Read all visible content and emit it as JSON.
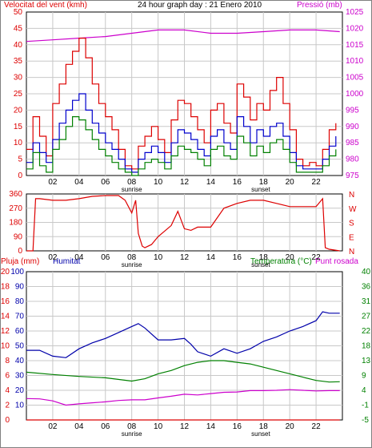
{
  "chart_data": [
    {
      "type": "line",
      "title": "24 hour graph day : 21 Enero 2010",
      "left_axis_label": "Velocitat del vent (kmh)",
      "right_axis_label": "Pressió (mb)",
      "left_ylim": [
        0,
        50
      ],
      "left_ticks": [
        "0",
        "5",
        "10",
        "15",
        "20",
        "25",
        "30",
        "35",
        "40",
        "45",
        "50"
      ],
      "right_ylim": [
        975,
        1025
      ],
      "right_ticks": [
        "975",
        "980",
        "985",
        "990",
        "995",
        "1000",
        "1005",
        "1010",
        "1015",
        "1020",
        "1025"
      ],
      "x_ticks": [
        "02",
        "04",
        "06",
        "08",
        "10",
        "12",
        "14",
        "16",
        "18",
        "20",
        "22"
      ],
      "x_markers": [
        {
          "label": "sunrise",
          "hour": 8.0
        },
        {
          "label": "sunset",
          "hour": 17.8
        }
      ],
      "xlim": [
        0,
        24
      ],
      "grid": true,
      "colors": {
        "gust": "#dd0000",
        "average": "#0000cc",
        "speed": "#008000",
        "pressure": "#cc00cc"
      },
      "series": [
        {
          "axis": "right",
          "color": "pressure",
          "x": [
            0,
            2,
            4,
            6,
            8,
            10,
            12,
            14,
            16,
            18,
            20,
            22,
            23.8
          ],
          "y": [
            1016,
            1016.5,
            1017,
            1017.5,
            1018.5,
            1019.5,
            1019.5,
            1018.5,
            1018.5,
            1019,
            1019.5,
            1019.5,
            1019
          ]
        },
        {
          "axis": "left",
          "color": "gust",
          "x": [
            0,
            0.5,
            1,
            1.5,
            2,
            2.5,
            3,
            3.5,
            4,
            4.5,
            5,
            5.5,
            6,
            6.5,
            7,
            7.5,
            8,
            8.5,
            9,
            9.5,
            10,
            10.5,
            11,
            11.5,
            12,
            12.5,
            13,
            13.5,
            14,
            14.5,
            15,
            15.5,
            16,
            16.5,
            17,
            17.5,
            18,
            18.5,
            19,
            19.5,
            20,
            20.5,
            21,
            21.5,
            22,
            22.5,
            23,
            23.5
          ],
          "y": [
            8,
            18,
            12,
            6,
            22,
            28,
            34,
            38,
            42,
            36,
            28,
            22,
            18,
            14,
            8,
            3,
            2,
            9,
            12,
            15,
            11,
            7,
            17,
            23,
            22,
            18,
            14,
            10,
            20,
            22,
            16,
            13,
            28,
            24,
            17,
            22,
            20,
            26,
            30,
            22,
            14,
            5,
            3,
            4,
            3,
            8,
            14,
            16
          ]
        },
        {
          "axis": "left",
          "color": "average",
          "x": [
            0,
            0.5,
            1,
            1.5,
            2,
            2.5,
            3,
            3.5,
            4,
            4.5,
            5,
            5.5,
            6,
            6.5,
            7,
            7.5,
            8,
            8.5,
            9,
            9.5,
            10,
            10.5,
            11,
            11.5,
            12,
            12.5,
            13,
            13.5,
            14,
            14.5,
            15,
            15.5,
            16,
            16.5,
            17,
            17.5,
            18,
            18.5,
            19,
            19.5,
            20,
            20.5,
            21,
            21.5,
            22,
            22.5,
            23,
            23.5
          ],
          "y": [
            4,
            10,
            7,
            4,
            11,
            16,
            20,
            23,
            25,
            20,
            16,
            13,
            10,
            8,
            5,
            2,
            1,
            5,
            7,
            9,
            7,
            4,
            10,
            14,
            13,
            11,
            8,
            6,
            12,
            14,
            10,
            8,
            18,
            15,
            10,
            14,
            12,
            15,
            16,
            12,
            7,
            3,
            2,
            2,
            2,
            5,
            9,
            12
          ]
        },
        {
          "axis": "left",
          "color": "speed",
          "x": [
            0,
            0.5,
            1,
            1.5,
            2,
            2.5,
            3,
            3.5,
            4,
            4.5,
            5,
            5.5,
            6,
            6.5,
            7,
            7.5,
            8,
            8.5,
            9,
            9.5,
            10,
            10.5,
            11,
            11.5,
            12,
            12.5,
            13,
            13.5,
            14,
            14.5,
            15,
            15.5,
            16,
            16.5,
            17,
            17.5,
            18,
            18.5,
            19,
            19.5,
            20,
            20.5,
            21,
            21.5,
            22,
            22.5,
            23,
            23.5
          ],
          "y": [
            2,
            7,
            3,
            1,
            8,
            11,
            15,
            18,
            17,
            14,
            11,
            8,
            6,
            4,
            2,
            1,
            0,
            2,
            4,
            5,
            4,
            2,
            6,
            9,
            8,
            7,
            5,
            3,
            8,
            9,
            6,
            5,
            12,
            10,
            6,
            9,
            7,
            10,
            11,
            8,
            4,
            1,
            1,
            1,
            1,
            3,
            6,
            8
          ]
        }
      ]
    },
    {
      "type": "line",
      "left_ticks": [
        "0",
        "90",
        "180",
        "270",
        "360"
      ],
      "right_ticks": [
        "N",
        "E",
        "S",
        "W",
        "N"
      ],
      "ylim": [
        0,
        360
      ],
      "x_ticks": [
        "02",
        "04",
        "06",
        "08",
        "10",
        "12",
        "14",
        "16",
        "18",
        "20",
        "22"
      ],
      "x_markers": [
        {
          "label": "sunrise",
          "hour": 8.0
        },
        {
          "label": "sunset",
          "hour": 17.8
        }
      ],
      "xlim": [
        0,
        24
      ],
      "grid": true,
      "colors": {
        "direction": "#dd0000"
      },
      "series": [
        {
          "color": "direction",
          "x": [
            0,
            0.5,
            0.7,
            1,
            2,
            3,
            4,
            5,
            6,
            7,
            7.5,
            8,
            8.3,
            8.5,
            8.8,
            9,
            9.5,
            10,
            11,
            11.5,
            12,
            12.5,
            13,
            14,
            15,
            16,
            17,
            18,
            19,
            20,
            21,
            22,
            22.5,
            22.7,
            23,
            23.8
          ],
          "y": [
            0,
            0,
            330,
            330,
            320,
            320,
            330,
            345,
            350,
            350,
            320,
            240,
            320,
            110,
            30,
            20,
            40,
            90,
            160,
            250,
            140,
            130,
            150,
            150,
            270,
            300,
            320,
            320,
            300,
            280,
            280,
            280,
            330,
            20,
            10,
            0
          ]
        }
      ]
    },
    {
      "type": "line",
      "left_axis_label_1": "Pluja (mm)",
      "left_axis_label_2": "Humitat",
      "right_axis_label_1": "Temperatura (°C)",
      "right_axis_label_2": "Punt rosada",
      "rain_ticks": [
        "0",
        "2",
        "4",
        "6",
        "8",
        "10",
        "12",
        "14",
        "16",
        "18",
        "20"
      ],
      "humidity_ticks": [
        "10",
        "20",
        "30",
        "40",
        "50",
        "60",
        "70",
        "80",
        "90",
        "100"
      ],
      "right_ticks": [
        "-5",
        "-1",
        "4",
        "9",
        "13",
        "18",
        "22",
        "27",
        "31",
        "36",
        "40"
      ],
      "ylim_humidity": [
        0,
        100
      ],
      "ylim_temperature": [
        -5,
        40
      ],
      "x_ticks": [
        "02",
        "04",
        "06",
        "08",
        "10",
        "12",
        "14",
        "16",
        "18",
        "20",
        "22"
      ],
      "x_markers": [
        {
          "label": "sunrise",
          "hour": 8.0
        },
        {
          "label": "sunset",
          "hour": 17.8
        }
      ],
      "xlim": [
        0,
        24
      ],
      "grid": true,
      "colors": {
        "humidity": "#0000aa",
        "temperature": "#008000",
        "dewpoint": "#cc00cc",
        "rain": "#dd0000"
      },
      "series": [
        {
          "axis": "humidity",
          "color": "humidity",
          "x": [
            0,
            1,
            2,
            3,
            4,
            5,
            6,
            7,
            8,
            8.5,
            9,
            10,
            11,
            12,
            12.5,
            13,
            14,
            15,
            16,
            17,
            18,
            19,
            20,
            21,
            22,
            22.5,
            23,
            23.8
          ],
          "y": [
            47,
            47,
            43,
            42,
            48,
            52,
            55,
            59,
            63,
            65,
            62,
            54,
            54,
            55,
            51,
            46,
            43,
            48,
            45,
            48,
            53,
            56,
            60,
            63,
            67,
            73,
            72,
            72
          ]
        },
        {
          "axis": "temperature",
          "color": "temperature",
          "x": [
            0,
            2,
            4,
            6,
            8,
            9,
            10,
            11,
            12,
            13,
            14,
            15,
            16,
            17,
            18,
            19,
            20,
            21,
            22,
            23,
            23.8
          ],
          "y": [
            9.5,
            8.8,
            8.2,
            7.8,
            6.8,
            7.5,
            9,
            10,
            11.5,
            12.5,
            13,
            13,
            12.5,
            12,
            11,
            10,
            9,
            8,
            7,
            6.5,
            6.6
          ]
        },
        {
          "axis": "temperature",
          "color": "dewpoint",
          "x": [
            0,
            1,
            2,
            3,
            4,
            5,
            6,
            7,
            8,
            9,
            10,
            11,
            12,
            13,
            14,
            15,
            16,
            17,
            18,
            19,
            20,
            21,
            22,
            23,
            23.8
          ],
          "y": [
            1.5,
            1.4,
            0.8,
            -0.5,
            -0.1,
            0.2,
            0.5,
            0.9,
            1.1,
            1.1,
            1.7,
            2.2,
            2.8,
            2.6,
            3.0,
            3.4,
            3.5,
            3.9,
            3.9,
            4.0,
            4.2,
            4.0,
            3.8,
            3.9,
            3.9
          ]
        },
        {
          "axis": "humidity",
          "color": "rain",
          "x": [
            0,
            23.8
          ],
          "y": [
            0,
            0
          ]
        }
      ]
    }
  ]
}
